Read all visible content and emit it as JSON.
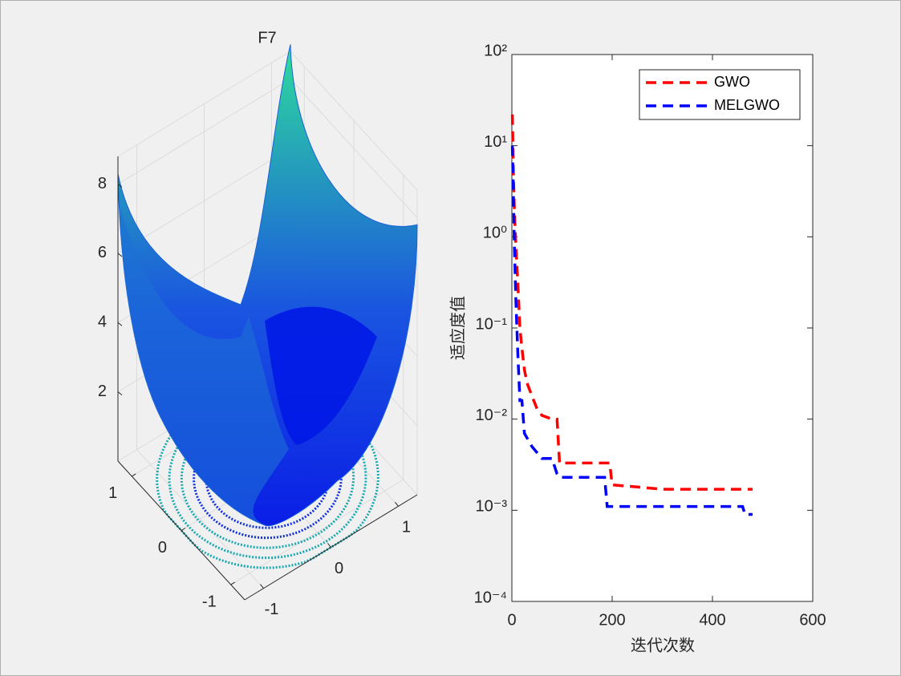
{
  "chart_data": [
    {
      "type": "surface3d",
      "title": "F7",
      "xlim": [
        -1.28,
        1.28
      ],
      "ylim": [
        -1.28,
        1.28
      ],
      "zlim": [
        0,
        8.8
      ],
      "xticks": [
        -1,
        0,
        1
      ],
      "yticks": [
        -1,
        0,
        1
      ],
      "zticks": [
        2,
        4,
        6,
        8
      ],
      "grid": true,
      "colormap": [
        "#0a1ee6",
        "#2edc9c"
      ]
    },
    {
      "type": "line",
      "ylog": true,
      "xlabel": "迭代次数",
      "ylabel": "适应度值",
      "xlim": [
        0,
        600
      ],
      "xticks": [
        0,
        200,
        400,
        600
      ],
      "ylim": [
        0.0001,
        100
      ],
      "yticks": [
        {
          "value": 0.0001,
          "label": "10⁻⁴"
        },
        {
          "value": 0.001,
          "label": "10⁻³"
        },
        {
          "value": 0.01,
          "label": "10⁻²"
        },
        {
          "value": 0.1,
          "label": "10⁻¹"
        },
        {
          "value": 1,
          "label": "10⁰"
        },
        {
          "value": 10,
          "label": "10¹"
        },
        {
          "value": 100,
          "label": "10²"
        }
      ],
      "legend": "northeast",
      "series": [
        {
          "name": "GWO",
          "color": "#ff0000",
          "x": [
            1,
            3,
            5,
            8,
            12,
            16,
            20,
            25,
            30,
            40,
            50,
            60,
            80,
            90,
            95,
            150,
            195,
            200,
            250,
            300,
            400,
            480
          ],
          "values": [
            22,
            5,
            2,
            0.8,
            0.3,
            0.1,
            0.06,
            0.035,
            0.025,
            0.018,
            0.013,
            0.011,
            0.01,
            0.01,
            0.0033,
            0.0033,
            0.0033,
            0.0019,
            0.0018,
            0.0017,
            0.0017,
            0.0017
          ]
        },
        {
          "name": "MELGWO",
          "color": "#0000ff",
          "x": [
            1,
            3,
            5,
            8,
            12,
            16,
            20,
            25,
            40,
            60,
            80,
            90,
            95,
            150,
            185,
            190,
            300,
            460,
            465,
            480
          ],
          "values": [
            10,
            3,
            0.8,
            0.2,
            0.05,
            0.016,
            0.016,
            0.007,
            0.005,
            0.0037,
            0.0037,
            0.0025,
            0.0023,
            0.0023,
            0.0023,
            0.0011,
            0.0011,
            0.0011,
            0.0009,
            0.0009
          ]
        }
      ]
    }
  ]
}
